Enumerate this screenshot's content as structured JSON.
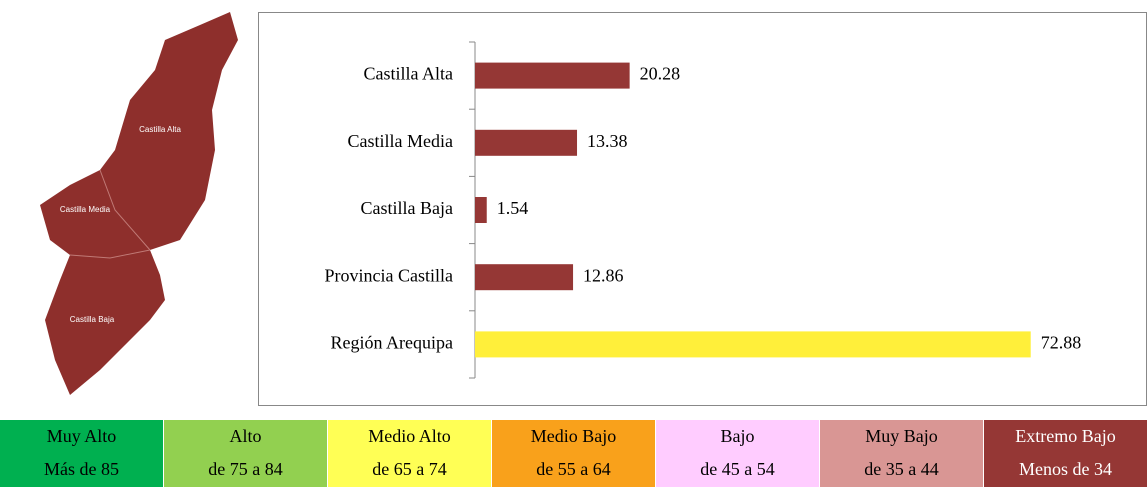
{
  "chart_data": {
    "type": "bar",
    "orientation": "horizontal",
    "categories": [
      "Castilla Alta",
      "Castilla Media",
      "Castilla Baja",
      "Provincia Castilla",
      "Región Arequipa"
    ],
    "values": [
      20.28,
      13.38,
      1.54,
      12.86,
      72.88
    ],
    "colors": [
      "#953735",
      "#953735",
      "#953735",
      "#953735",
      "#ffef3a"
    ],
    "xlim": [
      0,
      80
    ]
  },
  "map": {
    "labels": [
      "Castilla Alta",
      "Castilla Media",
      "Castilla Baja"
    ],
    "color": "#8e2f2c"
  },
  "legend": [
    {
      "label": "Muy Alto",
      "range": "Más de 85",
      "color": "#00b050"
    },
    {
      "label": "Alto",
      "range": "de 75 a 84",
      "color": "#92d050"
    },
    {
      "label": "Medio Alto",
      "range": "de 65 a 74",
      "color": "#ffff55"
    },
    {
      "label": "Medio Bajo",
      "range": "de 55 a 64",
      "color": "#f9a11b"
    },
    {
      "label": "Bajo",
      "range": "de 45 a 54",
      "color": "#ffccff"
    },
    {
      "label": "Muy Bajo",
      "range": "de 35 a 44",
      "color": "#d99694"
    },
    {
      "label": "Extremo Bajo",
      "range": "Menos de 34",
      "color": "#953735"
    }
  ]
}
